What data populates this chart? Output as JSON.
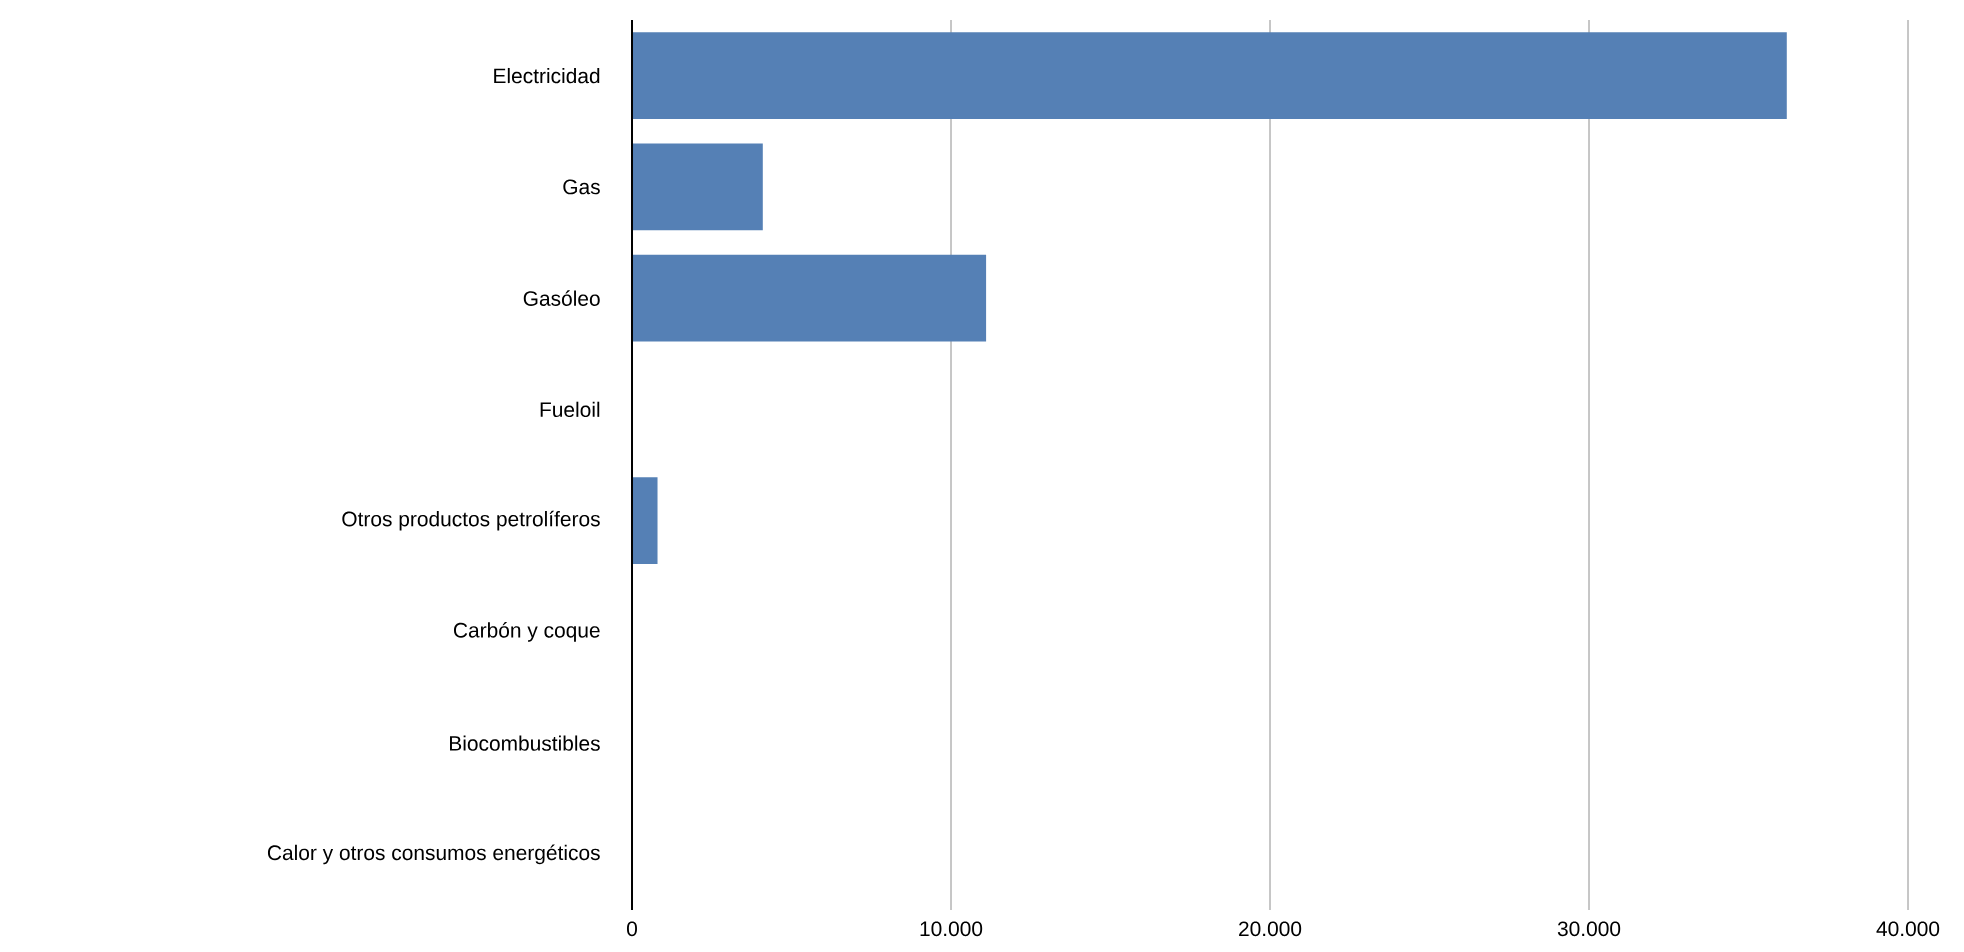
{
  "chart_data": {
    "type": "bar",
    "orientation": "horizontal",
    "categories": [
      "Electricidad",
      "Gas",
      "Gasóleo",
      "Fueloil",
      "Otros productos petrolíferos",
      "Carbón y coque",
      "Biocombustibles",
      "Calor y otros consumos energéticos"
    ],
    "values": [
      36200,
      4100,
      11100,
      0,
      800,
      0,
      0,
      0
    ],
    "color": "#5580b5",
    "xlim": [
      0,
      40000
    ],
    "xticks": [
      0,
      {
        "value": 10000,
        "label": "10.000"
      },
      {
        "value": 20000,
        "label": "20.000"
      },
      {
        "value": 30000,
        "label": "30.000"
      },
      {
        "value": 40000,
        "label": "40.000"
      }
    ],
    "grid": "x"
  }
}
